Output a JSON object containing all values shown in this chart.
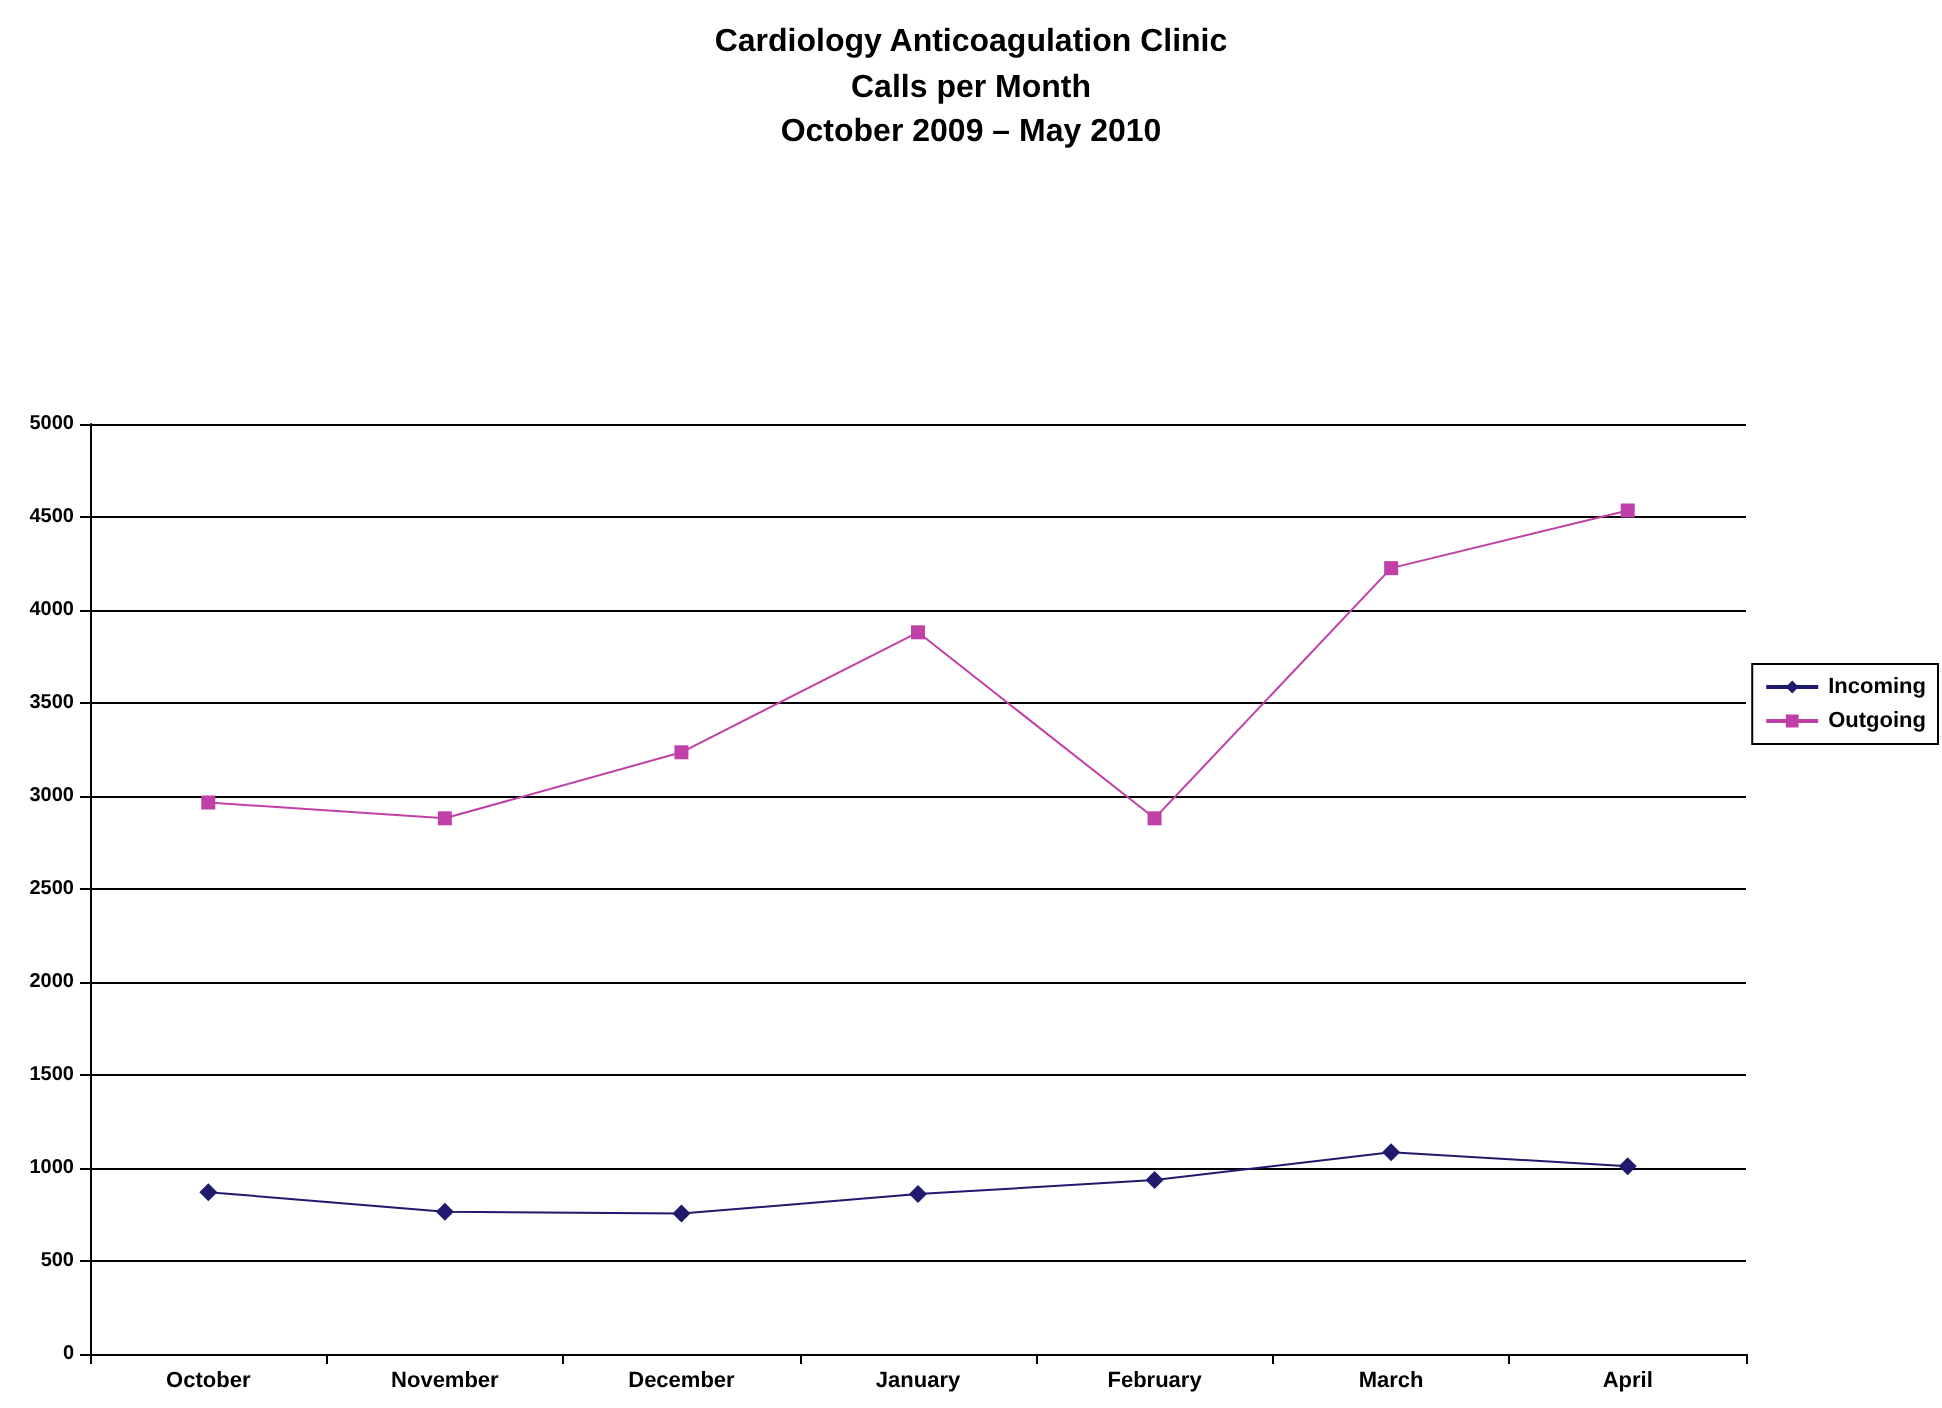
{
  "chart_data": {
    "type": "line",
    "title": "Cardiology Anticoagulation Clinic",
    "subtitle": "Calls per Month\nOctober 2009 – May 2010",
    "categories": [
      "October",
      "November",
      "December",
      "January",
      "February",
      "March",
      "April"
    ],
    "series": [
      {
        "name": "Incoming",
        "color": "#1f1a6e",
        "marker": "diamond",
        "values": [
          870,
          765,
          755,
          860,
          935,
          1085,
          1010
        ]
      },
      {
        "name": "Outgoing",
        "color": "#c040a8",
        "marker": "square",
        "values": [
          2965,
          2880,
          3235,
          3880,
          2880,
          4225,
          4535
        ]
      }
    ],
    "ylim": [
      0,
      5000
    ],
    "yticks": [
      0,
      500,
      1000,
      1500,
      2000,
      2500,
      3000,
      3500,
      4000,
      4500,
      5000
    ],
    "grid": "y",
    "legend": "right",
    "line_style": "solid"
  }
}
